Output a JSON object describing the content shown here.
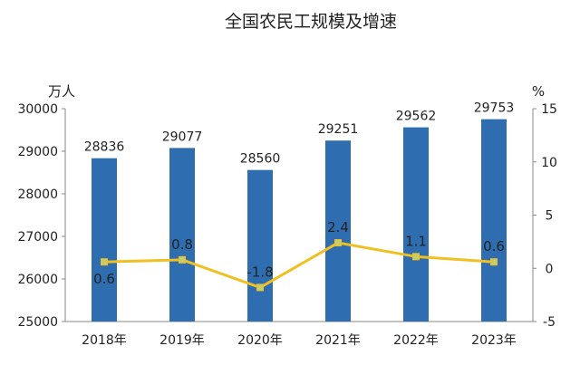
{
  "chart_data": {
    "type": "bar",
    "title": "全国农民工规模及增速",
    "y_left_unit": "万人",
    "y_right_unit": "%",
    "categories": [
      "2018年",
      "2019年",
      "2020年",
      "2021年",
      "2022年",
      "2023年"
    ],
    "series": [
      {
        "type": "bar",
        "axis": "left",
        "color": "#2e6db0",
        "values": [
          28836,
          29077,
          28560,
          29251,
          29562,
          29753
        ]
      },
      {
        "type": "line",
        "axis": "right",
        "color": "#f0c020",
        "marker_color": "#c8cc6a",
        "values": [
          0.6,
          0.8,
          -1.8,
          2.4,
          1.1,
          0.6
        ]
      }
    ],
    "y_left": {
      "ylim": [
        25000,
        30000
      ],
      "ticks": [
        "25000",
        "26000",
        "27000",
        "28000",
        "29000",
        "30000"
      ]
    },
    "y_right": {
      "ylim": [
        -5,
        15
      ],
      "ticks": [
        "-5",
        "0",
        "5",
        "10",
        "15"
      ]
    },
    "bar_labels": [
      "28836",
      "29077",
      "28560",
      "29251",
      "29562",
      "29753"
    ],
    "line_labels": [
      "0.6",
      "0.8",
      "-1.8",
      "2.4",
      "1.1",
      "0.6"
    ],
    "grid": false,
    "legend": "none"
  }
}
